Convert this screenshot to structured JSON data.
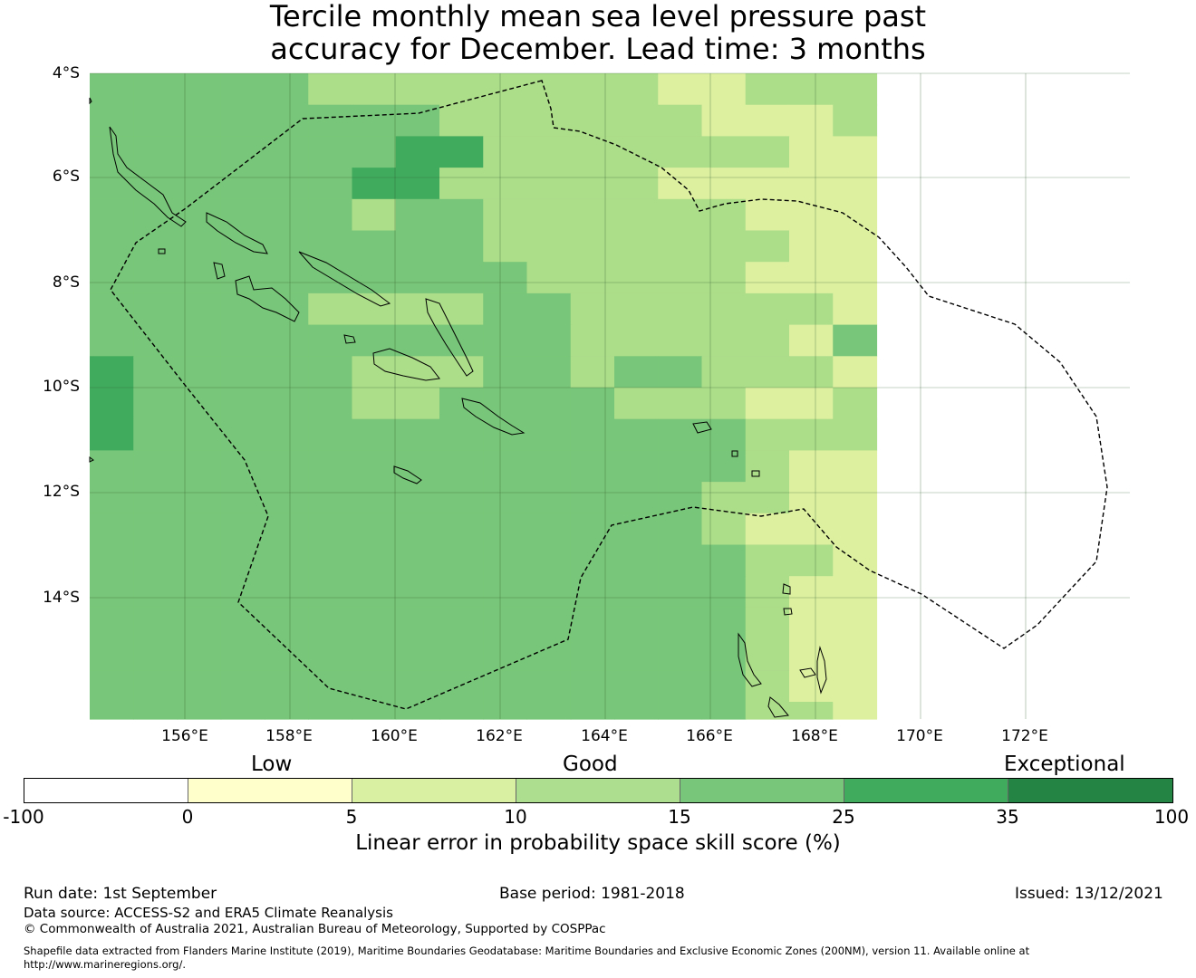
{
  "title": {
    "line1": "Tercile monthly mean sea level pressure past",
    "line2": "accuracy for December. Lead time: 3 months"
  },
  "map": {
    "lat_labels": [
      "4°S",
      "6°S",
      "8°S",
      "10°S",
      "12°S",
      "14°S"
    ],
    "lon_labels": [
      "156°E",
      "158°E",
      "160°E",
      "162°E",
      "164°E",
      "166°E",
      "168°E",
      "170°E",
      "172°E"
    ],
    "grid_rows": [
      "333332222222211222",
      "333333332222221112",
      "333333344222222211",
      "333333442222211111",
      "333333233222222111",
      "333333333222222211",
      "333333333322222111",
      "333332222332222221",
      "333333333332222213",
      "433333222332332221",
      "433333223333222112",
      "433333333333333222",
      "333333333333333211",
      "333333333333332211",
      "333333333333332111",
      "333333333333333221",
      "333333333333333211",
      "333333333333333211",
      "333333333333333211",
      "333333333333333211",
      "333333333333333221"
    ],
    "skill_colors": {
      "1": "#dcf0a0",
      "2": "#acdd89",
      "3": "#78c679",
      "4": "#41ab5d"
    }
  },
  "colorbar": {
    "category_labels": [
      "Low",
      "Good",
      "Exceptional"
    ],
    "ticks": [
      "-100",
      "0",
      "5",
      "10",
      "15",
      "25",
      "35",
      "100"
    ],
    "colors": [
      "#ffffff",
      "#ffffcc",
      "#d9f0a3",
      "#addd8e",
      "#78c679",
      "#41ab5d",
      "#238443"
    ],
    "title": "Linear error in probability space skill score (%)"
  },
  "footer": {
    "run_date": "Run date: 1st September",
    "base_period": "Base period: 1981-2018",
    "issued": "Issued: 13/12/2021",
    "data_source": "Data source: ACCESS-S2 and ERA5 Climate Reanalysis",
    "copyright": "© Commonwealth of Australia 2021, Australian Bureau of Meteorology, Supported by COSPPac",
    "shapefile_line1": "Shapefile data extracted from Flanders Marine Institute (2019), Maritime Boundaries Geodatabase: Maritime Boundaries and Exclusive Economic Zones (200NM), version 11. Available online at",
    "shapefile_line2": "http://www.marineregions.org/."
  }
}
